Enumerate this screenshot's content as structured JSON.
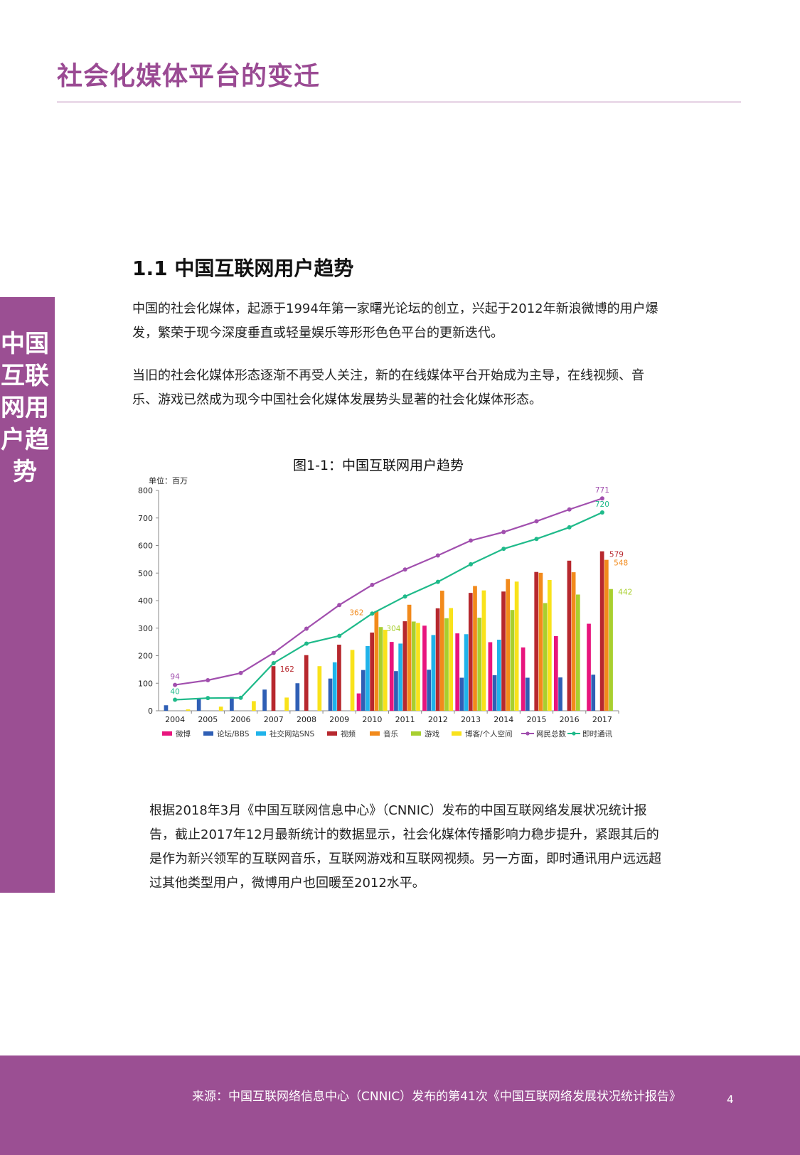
{
  "page": {
    "title": "社会化媒体平台的变迁",
    "side_label": "中国互联网用户趋势",
    "section_heading": "1.1 中国互联网用户趋势",
    "paragraphs": [
      "中国的社会化媒体，起源于1994年第一家曙光论坛的创立，兴起于2012年新浪微博的用户爆发，繁荣于现今深度垂直或轻量娱乐等形形色色平台的更新迭代。",
      "当旧的社会化媒体形态逐渐不再受人关注，新的在线媒体平台开始成为主导，在线视频、音乐、游戏已然成为现今中国社会化媒体发展势头显著的社会化媒体形态。",
      "根据2018年3月《中国互联网信息中心》（CNNIC）发布的中国互联网络发展状况统计报告，截止2017年12月最新统计的数据显示，社会化媒体传播影响力稳步提升，紧跟其后的是作为新兴领军的互联网音乐，互联网游戏和互联网视频。另一方面，即时通讯用户远远超过其他类型用户，微博用户也回暖至2012水平。"
    ],
    "chart_caption": "图1-1：中国互联网用户趋势",
    "footer_source": "来源：中国互联网络信息中心（CNNIC）发布的第41次《中国互联网络发展状况统计报告》",
    "page_number": "4"
  },
  "chart_data": {
    "type": "bar",
    "title": "图1-1：中国互联网用户趋势",
    "unit_label": "单位：百万",
    "ylim": [
      0,
      800
    ],
    "yticks": [
      0,
      100,
      200,
      300,
      400,
      500,
      600,
      700,
      800
    ],
    "grid": false,
    "legend_position": "bottom",
    "categories": [
      "2004",
      "2005",
      "2006",
      "2007",
      "2008",
      "2009",
      "2010",
      "2011",
      "2012",
      "2013",
      "2014",
      "2015",
      "2016",
      "2017"
    ],
    "series": [
      {
        "name": "微博",
        "kind": "bar",
        "color": "#e8157d",
        "values": [
          null,
          null,
          null,
          null,
          null,
          null,
          63,
          250,
          309,
          281,
          249,
          230,
          271,
          316
        ]
      },
      {
        "name": "论坛/BBS",
        "kind": "bar",
        "color": "#2f5fb5",
        "values": [
          20,
          45,
          50,
          77,
          100,
          117,
          148,
          144,
          149,
          120,
          129,
          120,
          121,
          131
        ]
      },
      {
        "name": "社交网站SNS",
        "kind": "bar",
        "color": "#1fb3ea",
        "values": [
          null,
          null,
          null,
          null,
          null,
          176,
          235,
          244,
          275,
          278,
          258,
          null,
          null,
          null
        ]
      },
      {
        "name": "视频",
        "kind": "bar",
        "color": "#b7282e",
        "values": [
          null,
          null,
          null,
          162,
          202,
          240,
          284,
          325,
          372,
          428,
          433,
          504,
          545,
          579
        ]
      },
      {
        "name": "音乐",
        "kind": "bar",
        "color": "#f28a1b",
        "values": [
          null,
          null,
          null,
          null,
          null,
          null,
          362,
          385,
          436,
          453,
          478,
          501,
          503,
          548
        ]
      },
      {
        "name": "游戏",
        "kind": "bar",
        "color": "#a8cf2f",
        "values": [
          null,
          null,
          null,
          null,
          null,
          null,
          304,
          324,
          336,
          338,
          366,
          391,
          422,
          442
        ]
      },
      {
        "name": "博客/个人空间",
        "kind": "bar",
        "color": "#f9e21b",
        "values": [
          5,
          15,
          35,
          48,
          162,
          221,
          294,
          319,
          373,
          437,
          469,
          475,
          null,
          null
        ]
      },
      {
        "name": "网民总数",
        "kind": "line",
        "color": "#a14fae",
        "values": [
          94,
          111,
          137,
          210,
          298,
          384,
          457,
          513,
          564,
          618,
          649,
          688,
          731,
          771
        ]
      },
      {
        "name": "即时通讯",
        "kind": "line",
        "color": "#1fba8a",
        "values": [
          40,
          46,
          47,
          173,
          244,
          272,
          353,
          415,
          468,
          532,
          588,
          624,
          666,
          720
        ]
      }
    ],
    "data_labels": [
      {
        "series": "网民总数",
        "category": "2004",
        "text": "94"
      },
      {
        "series": "即时通讯",
        "category": "2004",
        "text": "40"
      },
      {
        "series": "视频",
        "category": "2007",
        "text": "162"
      },
      {
        "series": "音乐",
        "category": "2010",
        "text": "362"
      },
      {
        "series": "游戏",
        "category": "2010",
        "text": "304"
      },
      {
        "series": "网民总数",
        "category": "2017",
        "text": "771"
      },
      {
        "series": "即时通讯",
        "category": "2017",
        "text": "720"
      },
      {
        "series": "视频",
        "category": "2017",
        "text": "579"
      },
      {
        "series": "音乐",
        "category": "2017",
        "text": "548"
      },
      {
        "series": "游戏",
        "category": "2017",
        "text": "442"
      }
    ]
  }
}
